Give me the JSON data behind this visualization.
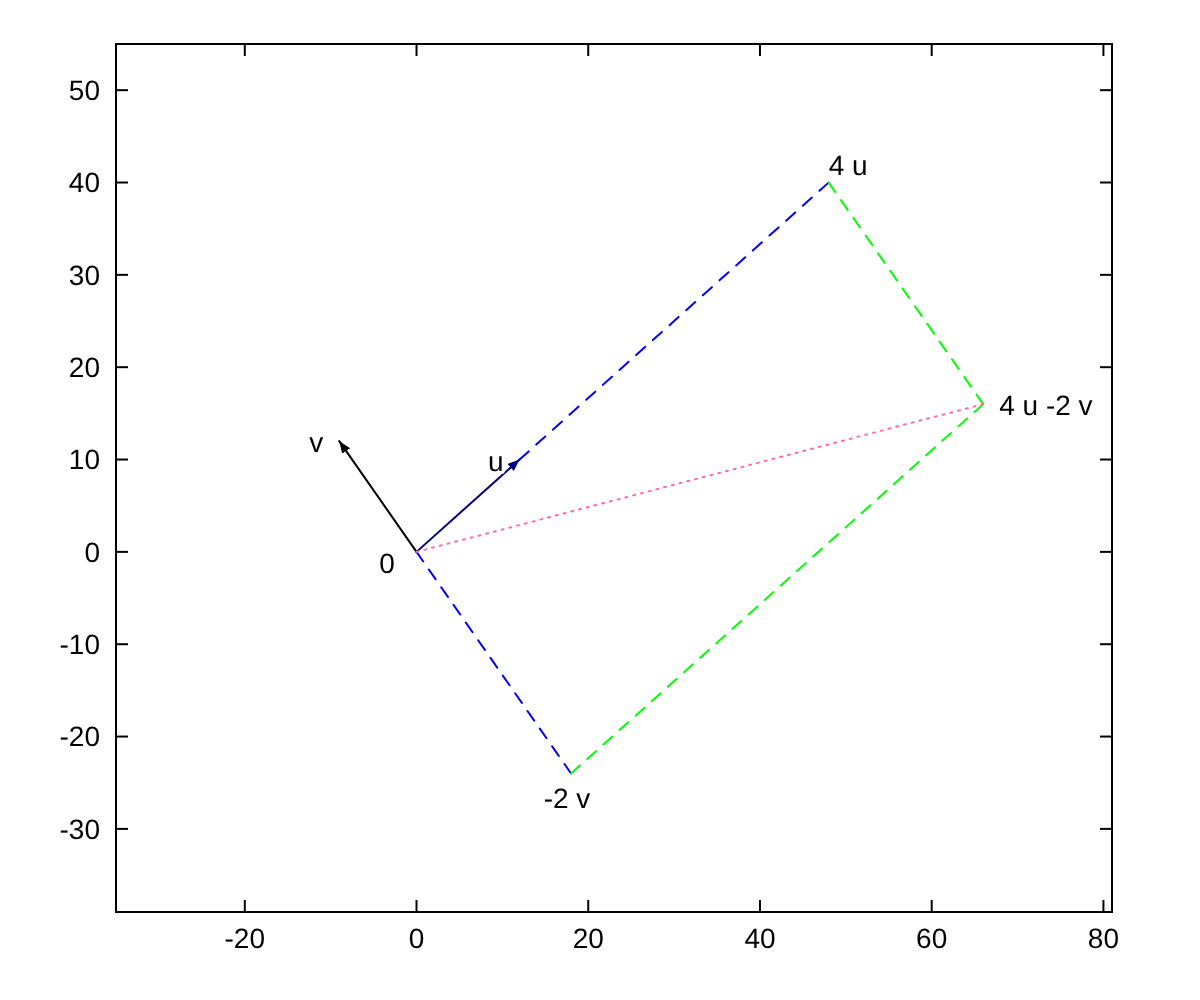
{
  "chart_data": {
    "type": "line",
    "xlim": [
      -35,
      81
    ],
    "ylim": [
      -39,
      55
    ],
    "xticks": [
      -20,
      0,
      20,
      40,
      60,
      80
    ],
    "yticks": [
      -30,
      -20,
      -10,
      0,
      10,
      20,
      30,
      40,
      50
    ],
    "grid": false,
    "legend": false,
    "series": [
      {
        "color": "#000080",
        "x": [
          0,
          12
        ],
        "values": [
          0,
          10
        ],
        "line_style": "solid"
      },
      {
        "color": "#000000",
        "x": [
          0,
          -9
        ],
        "values": [
          0,
          12
        ],
        "line_style": "solid"
      },
      {
        "color": "#0000ff",
        "x": [
          12,
          48
        ],
        "values": [
          10,
          40
        ],
        "line_style": "dashed"
      },
      {
        "color": "#0000ff",
        "x": [
          0,
          18
        ],
        "values": [
          0,
          -24
        ],
        "line_style": "dashed"
      },
      {
        "color": "#00ff00",
        "x": [
          48,
          66
        ],
        "values": [
          40,
          16
        ],
        "line_style": "dashed"
      },
      {
        "color": "#00ff00",
        "x": [
          18,
          66
        ],
        "values": [
          -24,
          16
        ],
        "line_style": "dashed"
      },
      {
        "color": "#ff69b4",
        "x": [
          0,
          66
        ],
        "values": [
          0,
          16
        ],
        "line_style": "dotted"
      }
    ],
    "annotations": [
      {
        "text": "0",
        "x": 0,
        "y": 0
      },
      {
        "text": "u",
        "x": 12,
        "y": 10
      },
      {
        "text": "v",
        "x": -9,
        "y": 12
      },
      {
        "text": "4 u",
        "x": 48,
        "y": 40
      },
      {
        "text": "-2 v",
        "x": 18,
        "y": -24
      },
      {
        "text": "4 u -2 v",
        "x": 66,
        "y": 16
      }
    ]
  }
}
